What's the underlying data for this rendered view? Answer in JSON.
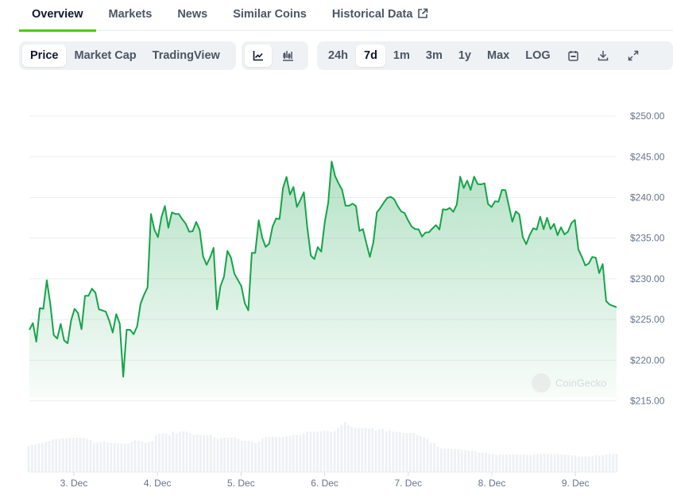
{
  "tabs": [
    {
      "label": "Overview",
      "active": true
    },
    {
      "label": "Markets"
    },
    {
      "label": "News"
    },
    {
      "label": "Similar Coins"
    },
    {
      "label": "Historical Data",
      "icon": "external-link-icon"
    }
  ],
  "toolbar": {
    "chart_types": [
      "Price",
      "Market Cap",
      "TradingView"
    ],
    "chart_type_selected": "Price",
    "view_icons": [
      "line-chart-icon",
      "candlestick-icon"
    ],
    "view_selected": "line-chart-icon",
    "ranges": [
      "24h",
      "7d",
      "1m",
      "3m",
      "1y",
      "Max",
      "LOG"
    ],
    "range_selected": "7d",
    "action_icons": [
      "calendar-icon",
      "download-icon",
      "expand-icon"
    ]
  },
  "chart_data": {
    "type": "area",
    "line_color": "#16a34a",
    "fill_color": "#16a34a",
    "y_ticks": [
      250,
      245,
      240,
      235,
      230,
      225,
      220,
      215
    ],
    "y_tick_labels": [
      "$250.00",
      "$245.00",
      "$240.00",
      "$235.00",
      "$230.00",
      "$225.00",
      "$220.00",
      "$215.00"
    ],
    "ylim": [
      215,
      250
    ],
    "x_tick_labels": [
      "3. Dec",
      "4. Dec",
      "5. Dec",
      "6. Dec",
      "7. Dec",
      "8. Dec",
      "9. Dec"
    ],
    "x_start": "2 Dec 11:00",
    "x_interval": "1h",
    "grid": true,
    "watermark": "CoinGecko",
    "prices": [
      223.74,
      224.56,
      222.28,
      226.41,
      226.32,
      229.83,
      227.0,
      223.09,
      222.67,
      224.46,
      222.44,
      222.08,
      224.88,
      226.32,
      225.79,
      223.81,
      227.91,
      227.91,
      228.79,
      228.3,
      226.25,
      226.12,
      225.96,
      224.82,
      223.39,
      225.66,
      224.49,
      217.98,
      223.74,
      223.74,
      223.19,
      224.17,
      226.93,
      228.04,
      228.95,
      237.97,
      236.02,
      235.14,
      237.58,
      238.95,
      236.28,
      238.16,
      237.97,
      237.97,
      237.32,
      236.76,
      235.79,
      235.85,
      236.99,
      236.02,
      232.76,
      231.72,
      232.63,
      233.8,
      226.25,
      229.11,
      230.25,
      233.44,
      232.63,
      230.64,
      229.86,
      229.11,
      227.0,
      226.12,
      233.18,
      233.18,
      237.19,
      235.07,
      233.93,
      234.32,
      236.44,
      237.42,
      237.35,
      241.16,
      242.53,
      240.35,
      241.29,
      238.85,
      239.69,
      240.64,
      236.28,
      232.86,
      232.43,
      233.9,
      233.35,
      236.93,
      239.37,
      244.41,
      242.62,
      241.71,
      240.93,
      238.98,
      238.98,
      239.24,
      238.95,
      235.89,
      236.11,
      234.32,
      232.7,
      234.49,
      238.16,
      238.72,
      239.37,
      239.95,
      240.08,
      239.79,
      238.95,
      238.29,
      238.07,
      237.19,
      236.44,
      236.11,
      236.08,
      235.2,
      235.69,
      235.72,
      236.18,
      236.6,
      236.05,
      238.55,
      238.49,
      238.72,
      238.23,
      239.14,
      242.56,
      241.16,
      242.07,
      240.93,
      242.56,
      241.65,
      241.61,
      241.74,
      239.21,
      238.82,
      239.53,
      239.47,
      240.93,
      240.9,
      238.98,
      237.02,
      238.29,
      237.9,
      235.14,
      234.26,
      235.4,
      236.21,
      236.05,
      237.64,
      236.11,
      237.51,
      236.11,
      236.76,
      235.36,
      236.34,
      235.46,
      235.79,
      236.86,
      237.25,
      233.61,
      232.7,
      231.65,
      231.88,
      232.7,
      232.6,
      230.71,
      231.82,
      227.26,
      226.84,
      226.67,
      226.51
    ],
    "volume_relative": [
      0.52,
      0.54,
      0.55,
      0.57,
      0.58,
      0.6,
      0.62,
      0.65,
      0.66,
      0.66,
      0.67,
      0.67,
      0.68,
      0.68,
      0.68,
      0.68,
      0.68,
      0.66,
      0.64,
      0.59,
      0.59,
      0.6,
      0.61,
      0.59,
      0.59,
      0.58,
      0.57,
      0.57,
      0.56,
      0.57,
      0.6,
      0.63,
      0.62,
      0.6,
      0.59,
      0.6,
      0.62,
      0.74,
      0.76,
      0.77,
      0.77,
      0.74,
      0.81,
      0.77,
      0.81,
      0.81,
      0.81,
      0.78,
      0.74,
      0.75,
      0.74,
      0.74,
      0.74,
      0.75,
      0.69,
      0.67,
      0.68,
      0.69,
      0.69,
      0.68,
      0.69,
      0.66,
      0.62,
      0.62,
      0.62,
      0.6,
      0.58,
      0.61,
      0.67,
      0.7,
      0.7,
      0.71,
      0.7,
      0.7,
      0.7,
      0.72,
      0.72,
      0.74,
      0.74,
      0.74,
      0.77,
      0.81,
      0.81,
      0.81,
      0.8,
      0.81,
      0.82,
      0.82,
      0.8,
      0.82,
      0.88,
      0.94,
      1.0,
      0.94,
      0.9,
      0.88,
      0.88,
      0.87,
      0.88,
      0.86,
      0.88,
      0.83,
      0.86,
      0.86,
      0.81,
      0.83,
      0.81,
      0.8,
      0.8,
      0.78,
      0.78,
      0.78,
      0.78,
      0.74,
      0.72,
      0.69,
      0.66,
      0.58,
      0.58,
      0.51,
      0.47,
      0.47,
      0.47,
      0.46,
      0.46,
      0.46,
      0.44,
      0.44,
      0.43,
      0.43,
      0.42,
      0.39,
      0.39,
      0.39,
      0.36,
      0.36,
      0.34,
      0.35,
      0.35,
      0.35,
      0.35,
      0.35,
      0.35,
      0.34,
      0.35,
      0.34,
      0.34,
      0.35,
      0.36,
      0.36,
      0.37,
      0.36,
      0.36,
      0.36,
      0.36,
      0.35,
      0.35,
      0.34,
      0.33,
      0.33,
      0.31,
      0.31,
      0.31,
      0.31,
      0.32,
      0.34,
      0.33,
      0.33,
      0.35,
      0.36,
      0.36,
      0.36
    ]
  }
}
